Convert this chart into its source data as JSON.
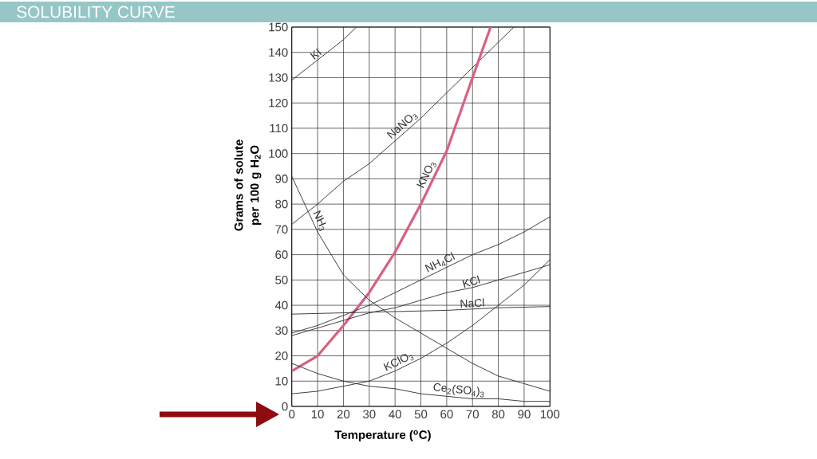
{
  "chart_data": {
    "type": "line",
    "title": "SOLUBILITY CURVE",
    "xlabel": "Temperature ($^{o}$C)",
    "ylabel": "Grams of solute per 100 g H$_{2}$O",
    "xlim": [
      0,
      100
    ],
    "ylim": [
      0,
      150
    ],
    "xticks": [
      0,
      10,
      20,
      30,
      40,
      50,
      60,
      70,
      80,
      90,
      100
    ],
    "yticks": [
      0,
      10,
      20,
      30,
      40,
      50,
      60,
      70,
      80,
      90,
      100,
      110,
      120,
      130,
      140,
      150
    ],
    "grid": true,
    "series": [
      {
        "name": "KI",
        "color": "#2b2b2b",
        "x": [
          0,
          10,
          20,
          25
        ],
        "values": [
          129,
          137,
          145,
          150
        ]
      },
      {
        "name": "NaNO$_{3}$",
        "color": "#2b2b2b",
        "x": [
          0,
          10,
          20,
          30,
          40,
          50,
          60,
          70,
          80,
          86
        ],
        "values": [
          72,
          80,
          89,
          96,
          105,
          114,
          124,
          134,
          144,
          150
        ]
      },
      {
        "name": "KNO$_{3}$",
        "color": "#d9607e",
        "x": [
          0,
          10,
          20,
          30,
          40,
          50,
          60,
          70,
          77
        ],
        "values": [
          14,
          20,
          32,
          45,
          61,
          80,
          101,
          130,
          150
        ]
      },
      {
        "name": "NH$_{3}$",
        "color": "#2b2b2b",
        "x": [
          0,
          10,
          20,
          30,
          40,
          50,
          60,
          70,
          80,
          90,
          100
        ],
        "values": [
          91,
          69,
          52,
          42,
          35,
          29,
          23,
          17,
          12,
          9,
          6
        ]
      },
      {
        "name": "NH$_{4}$Cl",
        "color": "#2b2b2b",
        "x": [
          0,
          10,
          20,
          30,
          40,
          50,
          60,
          70,
          80,
          90,
          100
        ],
        "values": [
          29,
          32,
          36,
          40,
          45,
          50,
          55,
          60,
          64,
          69,
          75
        ]
      },
      {
        "name": "KCl",
        "color": "#2b2b2b",
        "x": [
          0,
          10,
          20,
          30,
          40,
          50,
          60,
          70,
          80,
          90,
          100
        ],
        "values": [
          28,
          31,
          34,
          37,
          39,
          42,
          45,
          47,
          50,
          53,
          56
        ]
      },
      {
        "name": "NaCl",
        "color": "#2b2b2b",
        "x": [
          0,
          20,
          40,
          60,
          80,
          100
        ],
        "values": [
          36.5,
          37,
          37.5,
          38,
          39,
          39.5
        ]
      },
      {
        "name": "KClO$_{3}$",
        "color": "#2b2b2b",
        "x": [
          0,
          10,
          20,
          30,
          40,
          50,
          60,
          70,
          80,
          90,
          100
        ],
        "values": [
          5,
          6,
          8,
          10,
          14,
          19,
          25,
          32,
          40,
          48,
          58
        ]
      },
      {
        "name": "Ce$_{2}$(SO$_{4}$)$_{3}$",
        "color": "#2b2b2b",
        "x": [
          0,
          10,
          20,
          30,
          40,
          50,
          60,
          70,
          80,
          90,
          100
        ],
        "values": [
          17,
          13,
          10,
          8,
          7,
          5,
          4,
          3,
          3,
          2,
          2
        ]
      }
    ]
  }
}
